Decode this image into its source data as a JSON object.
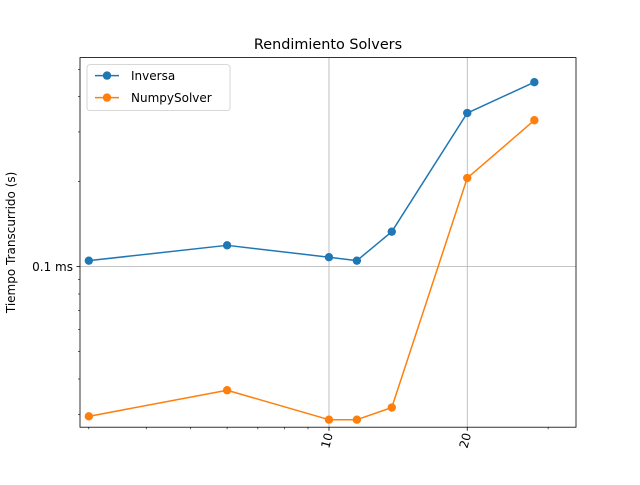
{
  "chart_data": {
    "type": "line",
    "title": "Rendimiento Solvers",
    "xlabel": "",
    "ylabel": "Tiempo Transcurrido (s)",
    "xscale": "log",
    "yscale": "log",
    "xlim": [
      2.87,
      34.5
    ],
    "ylim": [
      2.7e-05,
      0.00055
    ],
    "grid": true,
    "legend_location": "top-left",
    "x_major_ticks": [
      {
        "value": 10,
        "label": "10"
      },
      {
        "value": 20,
        "label": "20"
      }
    ],
    "x_minor_ticks": [
      3,
      4,
      5,
      6,
      7,
      8,
      9,
      30
    ],
    "y_major_ticks": [
      {
        "value": 0.0001,
        "label": "0.1 ms"
      }
    ],
    "x": [
      3,
      6,
      10,
      11.5,
      13.7,
      20,
      28
    ],
    "series": [
      {
        "name": "Inversa",
        "color": "#1f77b4",
        "values": [
          0.000105,
          0.000119,
          0.000108,
          0.000105,
          0.000133,
          0.00035,
          0.00045
        ]
      },
      {
        "name": "NumpySolver",
        "color": "#ff7f0e",
        "values": [
          2.95e-05,
          3.65e-05,
          2.87e-05,
          2.87e-05,
          3.17e-05,
          0.000206,
          0.00033
        ]
      }
    ]
  }
}
